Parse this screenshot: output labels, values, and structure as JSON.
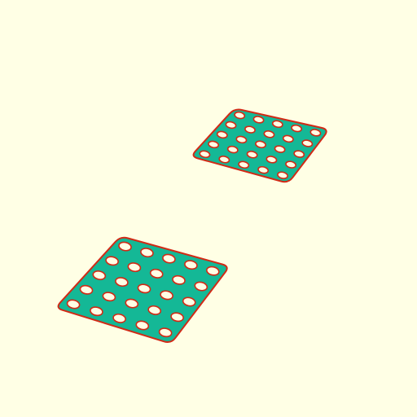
{
  "scene": {
    "background_color": "#FFFFE5",
    "plate_fill_color": "#14B896",
    "outline_color": "#D12A16",
    "hole_color": "#FFFFE5"
  },
  "plates": [
    {
      "name": "plate-upper-right",
      "hole_rows": 5,
      "hole_cols": 5
    },
    {
      "name": "plate-lower-left",
      "hole_rows": 5,
      "hole_cols": 5
    }
  ]
}
